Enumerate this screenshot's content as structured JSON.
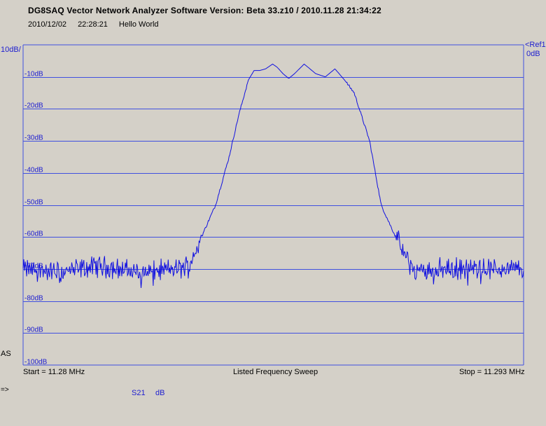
{
  "header": {
    "title": "DG8SAQ Vector Network Analyzer Software    Version:  Beta 33.z10 / 2010.11.28 21:34:22",
    "date": "2010/12/02",
    "time": "22:28:21",
    "message": "Hello World"
  },
  "scale_label": "10dB/",
  "ref_label": "<Ref1",
  "ref_value": "0dB",
  "start_label": "Start = 11.28 MHz",
  "sweep_mode": "Listed Frequency Sweep",
  "stop_label": "Stop = 11.293 MHz",
  "side_label": "AS",
  "prompt": "=>",
  "trace": {
    "name": "S21",
    "unit": "dB",
    "color": "#1010e0"
  },
  "colors": {
    "background": "#d4d0c8",
    "grid": "#4050e0",
    "text_accent": "#2020d0"
  },
  "chart_data": {
    "type": "line",
    "title": "",
    "xlabel": "",
    "ylabel": "",
    "x_unit": "MHz",
    "xlim": [
      11.28,
      11.293
    ],
    "ylim": [
      -100,
      0
    ],
    "grid": true,
    "yticks": [
      -10,
      -20,
      -30,
      -40,
      -50,
      -60,
      -70,
      -80,
      -90,
      -100
    ],
    "ytick_labels": [
      "-10dB",
      "-20dB",
      "-30dB",
      "-40dB",
      "-50dB",
      "-60dB",
      "-70dB",
      "-80dB",
      "-90dB",
      "-100dB"
    ],
    "series": [
      {
        "x": [
          11.28,
          11.281,
          11.282,
          11.283,
          11.284,
          11.2843,
          11.28445,
          11.285,
          11.28535,
          11.2856,
          11.28585,
          11.286,
          11.28615,
          11.2863,
          11.28648,
          11.2866,
          11.28675,
          11.2869,
          11.28705,
          11.2873,
          11.2876,
          11.28785,
          11.2881,
          11.28835,
          11.2886,
          11.289,
          11.2893,
          11.2896,
          11.2898,
          11.29,
          11.2903,
          11.2906,
          11.293
        ],
        "y": [
          -70,
          -71,
          -69,
          -71,
          -70,
          -69,
          -65,
          -50,
          -35,
          -22,
          -11,
          -8,
          -8,
          -7.5,
          -6,
          -7,
          -9,
          -10.5,
          -9,
          -6,
          -9,
          -10,
          -7.5,
          -11,
          -15,
          -30,
          -50,
          -58,
          -63,
          -68,
          -71,
          -70,
          -70
        ]
      }
    ]
  }
}
